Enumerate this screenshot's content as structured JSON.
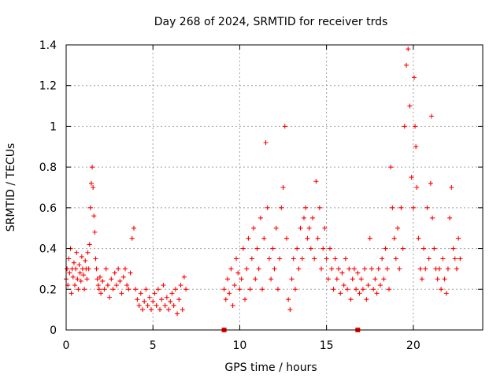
{
  "chart_data": {
    "type": "scatter",
    "title": "Day 268 of 2024, SRMTID for receiver trds",
    "xlabel": "GPS time / hours",
    "ylabel": "SRMTID / TECUs",
    "xlim": [
      0,
      24
    ],
    "ylim": [
      0,
      1.4
    ],
    "x_ticks": [
      0,
      5,
      10,
      15,
      20
    ],
    "x_tick_labels": [
      "0",
      "5",
      "10",
      "15",
      "20"
    ],
    "y_ticks": [
      0,
      0.2,
      0.4,
      0.6,
      0.8,
      1,
      1.2,
      1.4
    ],
    "y_tick_labels": [
      "0",
      "0.2",
      "0.4",
      "0.6",
      "0.8",
      "1",
      "1.2",
      "1.4"
    ],
    "grid": true,
    "marker": "plus",
    "series_color": "#ff0000",
    "baseline_markers": [
      {
        "x": 9.1,
        "y": 0
      },
      {
        "x": 16.8,
        "y": 0
      }
    ],
    "series": [
      {
        "name": "SRMTID",
        "points": [
          [
            0.0,
            0.25
          ],
          [
            0.05,
            0.3
          ],
          [
            0.1,
            0.22
          ],
          [
            0.15,
            0.35
          ],
          [
            0.2,
            0.28
          ],
          [
            0.25,
            0.4
          ],
          [
            0.3,
            0.18
          ],
          [
            0.35,
            0.3
          ],
          [
            0.4,
            0.26
          ],
          [
            0.45,
            0.33
          ],
          [
            0.5,
            0.22
          ],
          [
            0.55,
            0.3
          ],
          [
            0.6,
            0.38
          ],
          [
            0.65,
            0.25
          ],
          [
            0.7,
            0.2
          ],
          [
            0.75,
            0.32
          ],
          [
            0.8,
            0.28
          ],
          [
            0.85,
            0.24
          ],
          [
            0.9,
            0.36
          ],
          [
            0.95,
            0.3
          ],
          [
            1.0,
            0.27
          ],
          [
            1.05,
            0.2
          ],
          [
            1.1,
            0.34
          ],
          [
            1.15,
            0.3
          ],
          [
            1.2,
            0.25
          ],
          [
            1.25,
            0.38
          ],
          [
            1.3,
            0.3
          ],
          [
            1.35,
            0.42
          ],
          [
            1.4,
            0.6
          ],
          [
            1.45,
            0.72
          ],
          [
            1.5,
            0.8
          ],
          [
            1.55,
            0.7
          ],
          [
            1.6,
            0.56
          ],
          [
            1.65,
            0.48
          ],
          [
            1.7,
            0.35
          ],
          [
            1.75,
            0.3
          ],
          [
            1.8,
            0.25
          ],
          [
            1.85,
            0.22
          ],
          [
            1.9,
            0.2
          ],
          [
            1.95,
            0.26
          ],
          [
            2.0,
            0.18
          ],
          [
            2.1,
            0.24
          ],
          [
            2.2,
            0.2
          ],
          [
            2.3,
            0.3
          ],
          [
            2.4,
            0.22
          ],
          [
            2.5,
            0.16
          ],
          [
            2.6,
            0.25
          ],
          [
            2.7,
            0.2
          ],
          [
            2.8,
            0.28
          ],
          [
            2.9,
            0.22
          ],
          [
            3.0,
            0.3
          ],
          [
            3.1,
            0.24
          ],
          [
            3.2,
            0.18
          ],
          [
            3.3,
            0.26
          ],
          [
            3.4,
            0.3
          ],
          [
            3.5,
            0.22
          ],
          [
            3.6,
            0.2
          ],
          [
            3.7,
            0.28
          ],
          [
            3.8,
            0.45
          ],
          [
            3.9,
            0.5
          ],
          [
            4.0,
            0.2
          ],
          [
            4.1,
            0.15
          ],
          [
            4.2,
            0.12
          ],
          [
            4.3,
            0.18
          ],
          [
            4.4,
            0.1
          ],
          [
            4.5,
            0.14
          ],
          [
            4.6,
            0.2
          ],
          [
            4.7,
            0.12
          ],
          [
            4.8,
            0.16
          ],
          [
            4.9,
            0.1
          ],
          [
            5.0,
            0.14
          ],
          [
            5.1,
            0.18
          ],
          [
            5.2,
            0.12
          ],
          [
            5.3,
            0.2
          ],
          [
            5.4,
            0.1
          ],
          [
            5.5,
            0.15
          ],
          [
            5.6,
            0.22
          ],
          [
            5.7,
            0.12
          ],
          [
            5.8,
            0.16
          ],
          [
            5.9,
            0.1
          ],
          [
            6.0,
            0.14
          ],
          [
            6.1,
            0.18
          ],
          [
            6.2,
            0.12
          ],
          [
            6.3,
            0.2
          ],
          [
            6.4,
            0.08
          ],
          [
            6.5,
            0.15
          ],
          [
            6.6,
            0.22
          ],
          [
            6.7,
            0.1
          ],
          [
            6.8,
            0.26
          ],
          [
            6.9,
            0.2
          ],
          [
            9.1,
            0.2
          ],
          [
            9.2,
            0.15
          ],
          [
            9.3,
            0.25
          ],
          [
            9.4,
            0.18
          ],
          [
            9.5,
            0.3
          ],
          [
            9.6,
            0.12
          ],
          [
            9.7,
            0.22
          ],
          [
            9.8,
            0.35
          ],
          [
            9.9,
            0.28
          ],
          [
            10.0,
            0.2
          ],
          [
            10.1,
            0.25
          ],
          [
            10.2,
            0.4
          ],
          [
            10.3,
            0.15
          ],
          [
            10.4,
            0.3
          ],
          [
            10.5,
            0.45
          ],
          [
            10.6,
            0.2
          ],
          [
            10.7,
            0.35
          ],
          [
            10.8,
            0.5
          ],
          [
            10.9,
            0.25
          ],
          [
            11.0,
            0.4
          ],
          [
            11.1,
            0.3
          ],
          [
            11.2,
            0.55
          ],
          [
            11.3,
            0.2
          ],
          [
            11.4,
            0.45
          ],
          [
            11.5,
            0.92
          ],
          [
            11.6,
            0.6
          ],
          [
            11.7,
            0.35
          ],
          [
            11.8,
            0.25
          ],
          [
            11.9,
            0.4
          ],
          [
            12.0,
            0.3
          ],
          [
            12.1,
            0.5
          ],
          [
            12.2,
            0.2
          ],
          [
            12.3,
            0.35
          ],
          [
            12.4,
            0.6
          ],
          [
            12.5,
            0.7
          ],
          [
            12.6,
            1.0
          ],
          [
            12.7,
            0.45
          ],
          [
            12.8,
            0.15
          ],
          [
            12.9,
            0.1
          ],
          [
            13.0,
            0.25
          ],
          [
            13.1,
            0.35
          ],
          [
            13.2,
            0.2
          ],
          [
            13.3,
            0.4
          ],
          [
            13.4,
            0.3
          ],
          [
            13.5,
            0.5
          ],
          [
            13.6,
            0.35
          ],
          [
            13.7,
            0.55
          ],
          [
            13.8,
            0.6
          ],
          [
            13.9,
            0.45
          ],
          [
            14.0,
            0.5
          ],
          [
            14.1,
            0.4
          ],
          [
            14.2,
            0.55
          ],
          [
            14.3,
            0.35
          ],
          [
            14.4,
            0.73
          ],
          [
            14.5,
            0.45
          ],
          [
            14.6,
            0.6
          ],
          [
            14.7,
            0.3
          ],
          [
            14.8,
            0.4
          ],
          [
            14.9,
            0.5
          ],
          [
            15.0,
            0.35
          ],
          [
            15.1,
            0.25
          ],
          [
            15.2,
            0.4
          ],
          [
            15.3,
            0.3
          ],
          [
            15.4,
            0.2
          ],
          [
            15.5,
            0.35
          ],
          [
            15.6,
            0.25
          ],
          [
            15.7,
            0.3
          ],
          [
            15.8,
            0.18
          ],
          [
            15.9,
            0.28
          ],
          [
            16.0,
            0.22
          ],
          [
            16.1,
            0.35
          ],
          [
            16.2,
            0.2
          ],
          [
            16.3,
            0.3
          ],
          [
            16.4,
            0.15
          ],
          [
            16.5,
            0.25
          ],
          [
            16.6,
            0.3
          ],
          [
            16.7,
            0.2
          ],
          [
            16.8,
            0.28
          ],
          [
            16.9,
            0.18
          ],
          [
            17.0,
            0.25
          ],
          [
            17.1,
            0.2
          ],
          [
            17.2,
            0.3
          ],
          [
            17.3,
            0.15
          ],
          [
            17.4,
            0.22
          ],
          [
            17.5,
            0.45
          ],
          [
            17.6,
            0.3
          ],
          [
            17.7,
            0.2
          ],
          [
            17.8,
            0.25
          ],
          [
            17.9,
            0.18
          ],
          [
            18.0,
            0.3
          ],
          [
            18.1,
            0.22
          ],
          [
            18.2,
            0.35
          ],
          [
            18.3,
            0.25
          ],
          [
            18.4,
            0.4
          ],
          [
            18.5,
            0.3
          ],
          [
            18.6,
            0.2
          ],
          [
            18.7,
            0.8
          ],
          [
            18.8,
            0.6
          ],
          [
            18.9,
            0.45
          ],
          [
            19.0,
            0.35
          ],
          [
            19.1,
            0.5
          ],
          [
            19.2,
            0.3
          ],
          [
            19.3,
            0.6
          ],
          [
            19.4,
            0.4
          ],
          [
            19.5,
            1.0
          ],
          [
            19.6,
            1.3
          ],
          [
            19.7,
            1.38
          ],
          [
            19.8,
            1.1
          ],
          [
            19.9,
            0.75
          ],
          [
            20.0,
            0.6
          ],
          [
            20.05,
            1.24
          ],
          [
            20.1,
            1.0
          ],
          [
            20.15,
            0.9
          ],
          [
            20.2,
            0.7
          ],
          [
            20.3,
            0.45
          ],
          [
            20.4,
            0.3
          ],
          [
            20.5,
            0.25
          ],
          [
            20.6,
            0.4
          ],
          [
            20.7,
            0.3
          ],
          [
            20.8,
            0.6
          ],
          [
            20.9,
            0.35
          ],
          [
            21.0,
            0.72
          ],
          [
            21.05,
            1.05
          ],
          [
            21.1,
            0.55
          ],
          [
            21.2,
            0.4
          ],
          [
            21.3,
            0.3
          ],
          [
            21.4,
            0.25
          ],
          [
            21.5,
            0.3
          ],
          [
            21.6,
            0.2
          ],
          [
            21.7,
            0.35
          ],
          [
            21.8,
            0.25
          ],
          [
            21.9,
            0.18
          ],
          [
            22.0,
            0.3
          ],
          [
            22.1,
            0.55
          ],
          [
            22.2,
            0.7
          ],
          [
            22.3,
            0.4
          ],
          [
            22.4,
            0.35
          ],
          [
            22.5,
            0.3
          ],
          [
            22.6,
            0.45
          ],
          [
            22.7,
            0.35
          ]
        ]
      }
    ]
  }
}
